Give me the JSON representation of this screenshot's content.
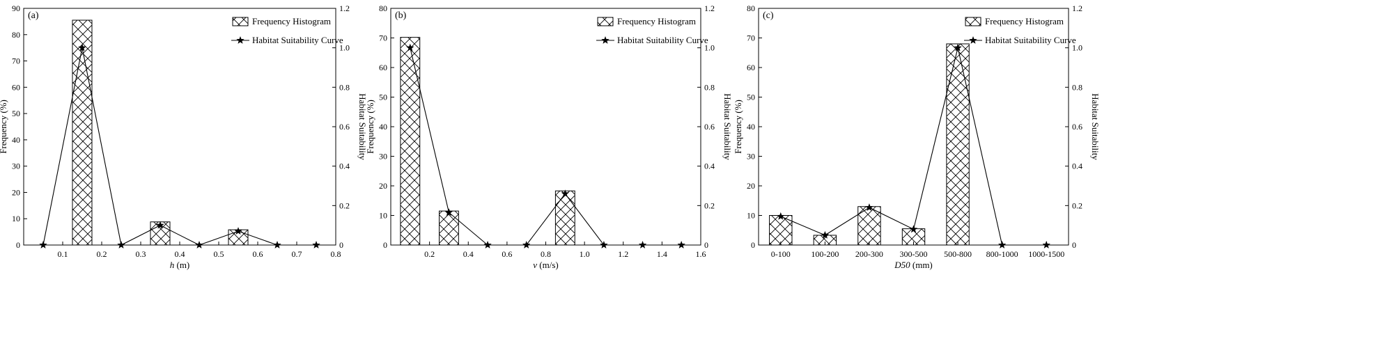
{
  "chart_data": [
    {
      "type": "bar",
      "panel_label": "(a)",
      "x_kind": "numeric",
      "x_ticks": [
        0.1,
        0.2,
        0.3,
        0.4,
        0.5,
        0.6,
        0.7,
        0.8
      ],
      "x_tick_labels": [
        "0.1",
        "0.2",
        "0.3",
        "0.4",
        "0.5",
        "0.6",
        "0.7",
        "0.8"
      ],
      "xlim": [
        0.0,
        0.8
      ],
      "xlabel_italic": "h",
      "xlabel_rest": " (m)",
      "ylabel": "Frequency (%)",
      "ylim": [
        0,
        90
      ],
      "y_ticks": [
        0,
        10,
        20,
        30,
        40,
        50,
        60,
        70,
        80,
        90
      ],
      "y2label": "Habitat Suitability",
      "y2lim": [
        0,
        1.2
      ],
      "y2_ticks": [
        "0",
        "0.2",
        "0.4",
        "0.6",
        "0.8",
        "1.0",
        "1.2"
      ],
      "bar_width": 0.05,
      "bars": [
        {
          "x": 0.15,
          "value": 85.5
        },
        {
          "x": 0.35,
          "value": 8.8
        },
        {
          "x": 0.55,
          "value": 5.8
        }
      ],
      "curve": {
        "x": [
          0.05,
          0.15,
          0.25,
          0.35,
          0.45,
          0.55,
          0.65,
          0.75
        ],
        "y": [
          0,
          1.0,
          0,
          0.1,
          0,
          0.07,
          0,
          0
        ]
      },
      "legend": {
        "histogram": "Frequency Histogram",
        "curve": "Habitat Suitability Curve",
        "position": "top-right"
      }
    },
    {
      "type": "bar",
      "panel_label": "(b)",
      "x_kind": "numeric",
      "x_ticks": [
        0.2,
        0.4,
        0.6,
        0.8,
        1.0,
        1.2,
        1.4,
        1.6
      ],
      "x_tick_labels": [
        "0.2",
        "0.4",
        "0.6",
        "0.8",
        "1.0",
        "1.2",
        "1.4",
        "1.6"
      ],
      "xlim": [
        0.0,
        1.6
      ],
      "xlabel_italic": "v",
      "xlabel_rest": " (m/s)",
      "ylabel": "Frequency (%)",
      "ylim": [
        0,
        80
      ],
      "y_ticks": [
        0,
        10,
        20,
        30,
        40,
        50,
        60,
        70,
        80
      ],
      "y2label": "Habitat Suitability",
      "y2lim": [
        0,
        1.2
      ],
      "y2_ticks": [
        "0",
        "0.2",
        "0.4",
        "0.6",
        "0.8",
        "1.0",
        "1.2"
      ],
      "bar_width": 0.1,
      "bars": [
        {
          "x": 0.1,
          "value": 70.2
        },
        {
          "x": 0.3,
          "value": 11.5
        },
        {
          "x": 0.9,
          "value": 18.3
        }
      ],
      "curve": {
        "x": [
          0.1,
          0.3,
          0.5,
          0.7,
          0.9,
          1.1,
          1.3,
          1.5
        ],
        "y": [
          1.0,
          0.165,
          0,
          0,
          0.26,
          0,
          0,
          0
        ]
      },
      "legend": {
        "histogram": "Frequency Histogram",
        "curve": "Habitat Suitability Curve",
        "position": "top-right"
      }
    },
    {
      "type": "bar",
      "panel_label": "(c)",
      "x_kind": "categorical",
      "categories": [
        "0-100",
        "100-200",
        "200-300",
        "300-500",
        "500-800",
        "800-1000",
        "1000-1500"
      ],
      "xlabel_italic": "D50",
      "xlabel_rest": " (mm)",
      "ylabel": "Frequency (%)",
      "ylim": [
        0,
        80
      ],
      "y_ticks": [
        0,
        10,
        20,
        30,
        40,
        50,
        60,
        70,
        80
      ],
      "y2label": "Habitat Suitability",
      "y2lim": [
        0,
        1.2
      ],
      "y2_ticks": [
        "0",
        "0.2",
        "0.4",
        "0.6",
        "0.8",
        "1.0",
        "1.2"
      ],
      "bars": [
        {
          "category": "0-100",
          "value": 10.0
        },
        {
          "category": "100-200",
          "value": 3.3
        },
        {
          "category": "200-300",
          "value": 13.0
        },
        {
          "category": "300-500",
          "value": 5.5
        },
        {
          "category": "500-800",
          "value": 68.0
        },
        {
          "category": "800-1000",
          "value": 0
        },
        {
          "category": "1000-1500",
          "value": 0
        }
      ],
      "curve": {
        "categories": [
          "0-100",
          "100-200",
          "200-300",
          "300-500",
          "500-800",
          "800-1000",
          "1000-1500"
        ],
        "y": [
          0.145,
          0.05,
          0.19,
          0.08,
          1.0,
          0,
          0
        ]
      },
      "legend": {
        "histogram": "Frequency Histogram",
        "curve": "Habitat Suitability Curve",
        "position": "top-right"
      }
    }
  ]
}
